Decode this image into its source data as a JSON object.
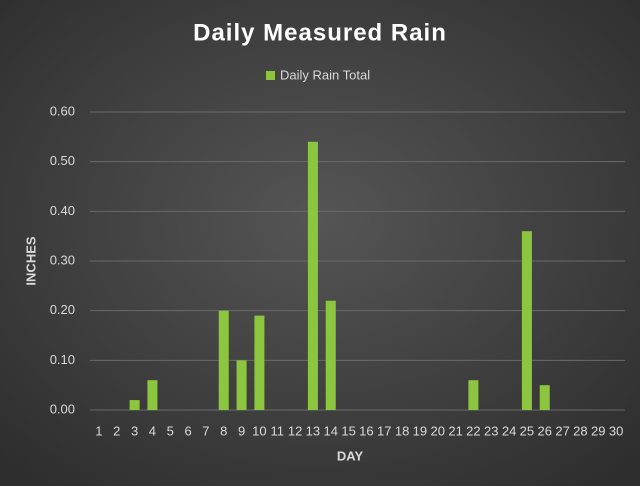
{
  "chart_data": {
    "type": "bar",
    "title": "Daily Measured Rain",
    "x_label": "DAY",
    "y_label": "INCHES",
    "categories": [
      1,
      2,
      3,
      4,
      5,
      6,
      7,
      8,
      9,
      10,
      11,
      12,
      13,
      14,
      15,
      16,
      17,
      18,
      19,
      20,
      21,
      22,
      23,
      24,
      25,
      26,
      27,
      28,
      29,
      30
    ],
    "series": [
      {
        "name": "Daily Rain Total",
        "color": "#8cc63f",
        "values": [
          0,
          0,
          0.02,
          0.06,
          0,
          0,
          0,
          0.2,
          0.1,
          0.19,
          0,
          0,
          0.54,
          0.22,
          0,
          0,
          0,
          0,
          0,
          0,
          0,
          0.06,
          0,
          0,
          0.36,
          0.05,
          0,
          0,
          0,
          0
        ]
      }
    ],
    "ylim": [
      0,
      0.6
    ],
    "yticks": [
      {
        "value": 0,
        "label": "0.00"
      },
      {
        "value": 0.1,
        "label": "0.10"
      },
      {
        "value": 0.2,
        "label": "0.20"
      },
      {
        "value": 0.3,
        "label": "0.30"
      },
      {
        "value": 0.4,
        "label": "0.40"
      },
      {
        "value": 0.5,
        "label": "0.50"
      },
      {
        "value": 0.6,
        "label": "0.60"
      }
    ],
    "grid": true
  }
}
